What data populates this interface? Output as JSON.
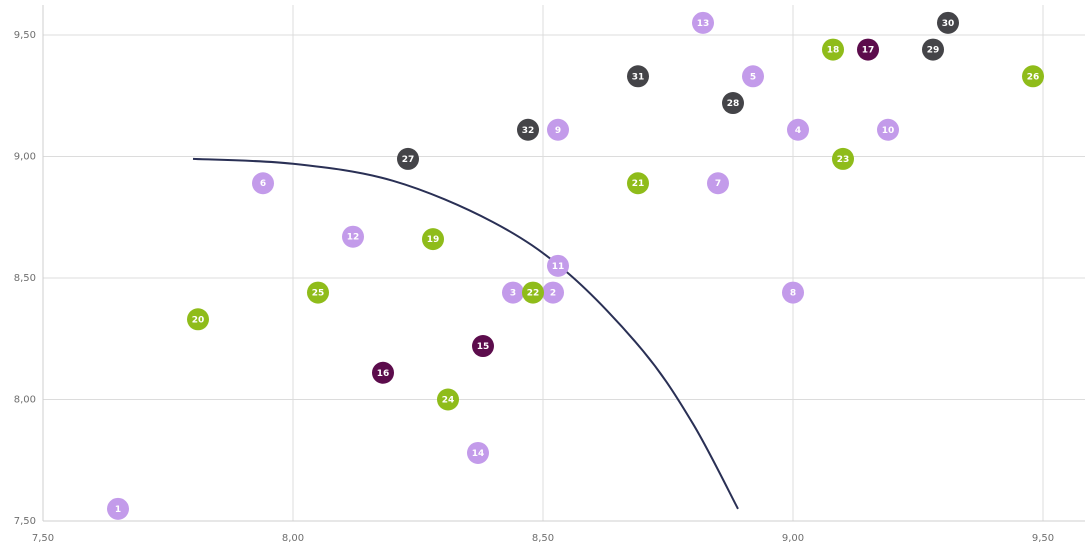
{
  "chart_data": {
    "type": "scatter",
    "title": "",
    "xlabel": "",
    "ylabel": "",
    "xlim": [
      7.5,
      9.6
    ],
    "ylim": [
      7.5,
      9.6
    ],
    "grid": true,
    "x_ticks": [
      {
        "value": 7.5,
        "label": "7,50"
      },
      {
        "value": 8.0,
        "label": "8,00"
      },
      {
        "value": 8.5,
        "label": "8,50"
      },
      {
        "value": 9.0,
        "label": "9,00"
      },
      {
        "value": 9.5,
        "label": "9,50"
      }
    ],
    "y_ticks": [
      {
        "value": 7.5,
        "label": "7,50"
      },
      {
        "value": 8.0,
        "label": "8,00"
      },
      {
        "value": 8.5,
        "label": "8,50"
      },
      {
        "value": 9.0,
        "label": "9,00"
      },
      {
        "value": 9.5,
        "label": "9,50"
      }
    ],
    "colors": {
      "lavender": "#c39bea",
      "green": "#8fbc1a",
      "dark_gray": "#444448",
      "purple": "#5c0c4c",
      "curve": "#2a3055"
    },
    "points": [
      {
        "label": "1",
        "x": 7.65,
        "y": 7.55,
        "color": "lavender"
      },
      {
        "label": "2",
        "x": 8.52,
        "y": 8.44,
        "color": "lavender"
      },
      {
        "label": "3",
        "x": 8.44,
        "y": 8.44,
        "color": "lavender"
      },
      {
        "label": "4",
        "x": 9.01,
        "y": 9.11,
        "color": "lavender"
      },
      {
        "label": "5",
        "x": 8.92,
        "y": 9.33,
        "color": "lavender"
      },
      {
        "label": "6",
        "x": 7.94,
        "y": 8.89,
        "color": "lavender"
      },
      {
        "label": "7",
        "x": 8.85,
        "y": 8.89,
        "color": "lavender"
      },
      {
        "label": "8",
        "x": 9.0,
        "y": 8.44,
        "color": "lavender"
      },
      {
        "label": "9",
        "x": 8.53,
        "y": 9.11,
        "color": "lavender"
      },
      {
        "label": "10",
        "x": 9.19,
        "y": 9.11,
        "color": "lavender"
      },
      {
        "label": "11",
        "x": 8.53,
        "y": 8.55,
        "color": "lavender"
      },
      {
        "label": "12",
        "x": 8.12,
        "y": 8.67,
        "color": "lavender"
      },
      {
        "label": "13",
        "x": 8.82,
        "y": 9.55,
        "color": "lavender"
      },
      {
        "label": "14",
        "x": 8.37,
        "y": 7.78,
        "color": "lavender"
      },
      {
        "label": "15",
        "x": 8.38,
        "y": 8.22,
        "color": "purple"
      },
      {
        "label": "16",
        "x": 8.18,
        "y": 8.11,
        "color": "purple"
      },
      {
        "label": "17",
        "x": 9.15,
        "y": 9.44,
        "color": "purple"
      },
      {
        "label": "18",
        "x": 9.08,
        "y": 9.44,
        "color": "green"
      },
      {
        "label": "19",
        "x": 8.28,
        "y": 8.66,
        "color": "green"
      },
      {
        "label": "20",
        "x": 7.81,
        "y": 8.33,
        "color": "green"
      },
      {
        "label": "21",
        "x": 8.69,
        "y": 8.89,
        "color": "green"
      },
      {
        "label": "22",
        "x": 8.48,
        "y": 8.44,
        "color": "green"
      },
      {
        "label": "23",
        "x": 9.1,
        "y": 8.99,
        "color": "green"
      },
      {
        "label": "24",
        "x": 8.31,
        "y": 8.0,
        "color": "green"
      },
      {
        "label": "25",
        "x": 8.05,
        "y": 8.44,
        "color": "green"
      },
      {
        "label": "26",
        "x": 9.48,
        "y": 9.33,
        "color": "green"
      },
      {
        "label": "27",
        "x": 8.23,
        "y": 8.99,
        "color": "dark_gray"
      },
      {
        "label": "28",
        "x": 8.88,
        "y": 9.22,
        "color": "dark_gray"
      },
      {
        "label": "29",
        "x": 9.28,
        "y": 9.44,
        "color": "dark_gray"
      },
      {
        "label": "30",
        "x": 9.31,
        "y": 9.55,
        "color": "dark_gray"
      },
      {
        "label": "31",
        "x": 8.69,
        "y": 9.33,
        "color": "dark_gray"
      },
      {
        "label": "32",
        "x": 8.47,
        "y": 9.11,
        "color": "dark_gray"
      }
    ],
    "curve": {
      "description": "frontier",
      "points": [
        [
          7.8,
          8.99
        ],
        [
          8.0,
          8.97
        ],
        [
          8.2,
          8.9
        ],
        [
          8.4,
          8.73
        ],
        [
          8.55,
          8.52
        ],
        [
          8.7,
          8.2
        ],
        [
          8.8,
          7.9
        ],
        [
          8.89,
          7.55
        ]
      ]
    }
  }
}
